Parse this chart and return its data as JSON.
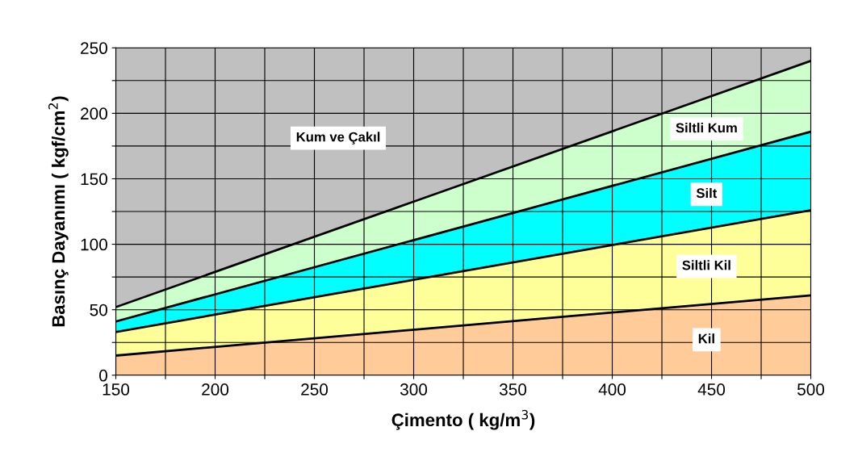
{
  "chart_data": {
    "type": "area",
    "stacked": true,
    "xlabel": "Çimento ( kg/m$^{3}$)",
    "ylabel": "Basınç Dayanımı ( kgf/cm$^{2}$)",
    "x": [
      150,
      500
    ],
    "series": [
      {
        "name": "Kil",
        "color": "#ffcc99",
        "values": [
          15,
          61
        ]
      },
      {
        "name": "Siltli Kil",
        "color": "#ffff99",
        "values": [
          18,
          65
        ]
      },
      {
        "name": "Silt",
        "color": "#00ffff",
        "values": [
          8,
          60
        ]
      },
      {
        "name": "Siltli Kum",
        "color": "#ccffcc",
        "values": [
          11,
          54
        ]
      },
      {
        "name": "Kum ve Çakıl",
        "color": "#c0c0c0",
        "values": [
          198,
          10
        ]
      }
    ],
    "xlim": [
      150,
      500
    ],
    "ylim": [
      0,
      250
    ],
    "xticks": [
      150,
      {
        "value": 175,
        "label": null
      },
      200,
      {
        "value": 225,
        "label": null
      },
      250,
      {
        "value": 275,
        "label": null
      },
      300,
      {
        "value": 325,
        "label": null
      },
      350,
      {
        "value": 375,
        "label": null
      },
      400,
      {
        "value": 425,
        "label": null
      },
      450,
      {
        "value": 475,
        "label": null
      },
      500
    ],
    "yticks": [
      0,
      {
        "value": 25,
        "label": null
      },
      50,
      {
        "value": 75,
        "label": null
      },
      100,
      {
        "value": 125,
        "label": null
      },
      150,
      {
        "value": 175,
        "label": null
      },
      200,
      {
        "value": 225,
        "label": null
      },
      250
    ],
    "grid": true,
    "legend": false
  }
}
